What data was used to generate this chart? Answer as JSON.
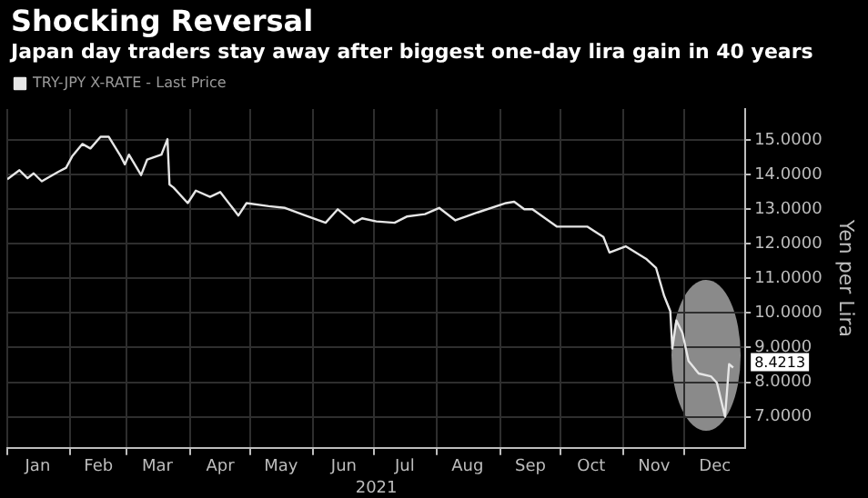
{
  "chart_data": {
    "type": "line",
    "title": "Shocking Reversal",
    "subtitle": "Japan day traders stay away after biggest one-day lira gain in 40 years",
    "xlabel": "2021",
    "ylabel": "Yen per Lira",
    "x": [
      "2021-01-01",
      "2021-01-07",
      "2021-01-11",
      "2021-01-14",
      "2021-01-18",
      "2021-01-26",
      "2021-01-30",
      "2021-02-02",
      "2021-02-07",
      "2021-02-11",
      "2021-02-16",
      "2021-02-20",
      "2021-02-26",
      "2021-02-28",
      "2021-03-02",
      "2021-03-08",
      "2021-03-11",
      "2021-03-18",
      "2021-03-21",
      "2021-03-22",
      "2021-03-24",
      "2021-03-31",
      "2021-04-04",
      "2021-04-11",
      "2021-04-16",
      "2021-04-25",
      "2021-04-29",
      "2021-05-10",
      "2021-05-18",
      "2021-05-28",
      "2021-06-07",
      "2021-06-13",
      "2021-06-21",
      "2021-06-25",
      "2021-07-02",
      "2021-07-11",
      "2021-07-17",
      "2021-07-26",
      "2021-08-02",
      "2021-08-10",
      "2021-08-21",
      "2021-09-04",
      "2021-09-08",
      "2021-09-13",
      "2021-09-17",
      "2021-09-29",
      "2021-10-14",
      "2021-10-22",
      "2021-10-25",
      "2021-11-02",
      "2021-11-12",
      "2021-11-17",
      "2021-11-21",
      "2021-11-24",
      "2021-11-25",
      "2021-11-27",
      "2021-11-30",
      "2021-12-03",
      "2021-12-08",
      "2021-12-14",
      "2021-12-17",
      "2021-12-21",
      "2021-12-23",
      "2021-12-25"
    ],
    "series": [
      {
        "name": "TRY-JPY X-RATE - Last Price",
        "color": "#e6e6e6",
        "values": [
          13.87,
          14.13,
          13.9,
          14.04,
          13.81,
          14.08,
          14.2,
          14.53,
          14.89,
          14.76,
          15.1,
          15.1,
          14.53,
          14.3,
          14.58,
          13.99,
          14.44,
          14.58,
          15.03,
          13.72,
          13.63,
          13.18,
          13.54,
          13.36,
          13.5,
          12.82,
          13.18,
          13.09,
          13.04,
          12.82,
          12.61,
          13.0,
          12.61,
          12.74,
          12.65,
          12.61,
          12.79,
          12.86,
          13.04,
          12.68,
          12.91,
          13.18,
          13.22,
          13.0,
          13.0,
          12.5,
          12.5,
          12.2,
          11.75,
          11.93,
          11.57,
          11.3,
          10.49,
          10.05,
          8.97,
          9.78,
          9.42,
          8.61,
          8.25,
          8.17,
          7.98,
          7.0,
          8.52,
          8.4213
        ],
        "value_labels": [
          null,
          null,
          null,
          null,
          null,
          null,
          null,
          null,
          null,
          null,
          null,
          null,
          null,
          null,
          null,
          null,
          null,
          null,
          null,
          null,
          null,
          null,
          null,
          null,
          null,
          null,
          null,
          null,
          null,
          null,
          null,
          null,
          null,
          null,
          null,
          null,
          null,
          null,
          null,
          null,
          null,
          null,
          null,
          null,
          null,
          null,
          null,
          null,
          null,
          null,
          null,
          null,
          null,
          null,
          null,
          null,
          null,
          null,
          null,
          null,
          null,
          null,
          null,
          "8.4213"
        ]
      }
    ],
    "xlim": [
      "2021-01-01",
      "2021-12-31"
    ],
    "xticks": [
      {
        "value": "2021-01-01",
        "label": null
      },
      {
        "value": "2021-01-16",
        "label": "Jan"
      },
      {
        "value": "2021-02-01",
        "label": null
      },
      {
        "value": "2021-02-15",
        "label": "Feb"
      },
      {
        "value": "2021-03-01",
        "label": null
      },
      {
        "value": "2021-03-16",
        "label": "Mar"
      },
      {
        "value": "2021-04-01",
        "label": null
      },
      {
        "value": "2021-04-16",
        "label": "Apr"
      },
      {
        "value": "2021-05-01",
        "label": null
      },
      {
        "value": "2021-05-16",
        "label": "May"
      },
      {
        "value": "2021-06-01",
        "label": null
      },
      {
        "value": "2021-06-16",
        "label": "Jun"
      },
      {
        "value": "2021-07-01",
        "label": null
      },
      {
        "value": "2021-07-16",
        "label": "Jul"
      },
      {
        "value": "2021-08-01",
        "label": null
      },
      {
        "value": "2021-08-16",
        "label": "Aug"
      },
      {
        "value": "2021-09-01",
        "label": null
      },
      {
        "value": "2021-09-16",
        "label": "Sep"
      },
      {
        "value": "2021-10-01",
        "label": null
      },
      {
        "value": "2021-10-16",
        "label": "Oct"
      },
      {
        "value": "2021-11-01",
        "label": null
      },
      {
        "value": "2021-11-16",
        "label": "Nov"
      },
      {
        "value": "2021-12-01",
        "label": null
      },
      {
        "value": "2021-12-16",
        "label": "Dec"
      }
    ],
    "ylim": [
      6.1,
      15.9
    ],
    "yticks": [
      {
        "value": 7,
        "label": "7.0000"
      },
      {
        "value": 8,
        "label": "8.0000"
      },
      {
        "value": 9,
        "label": "9.0000"
      },
      {
        "value": 10,
        "label": "10.0000"
      },
      {
        "value": 11,
        "label": "11.0000"
      },
      {
        "value": 12,
        "label": "12.0000"
      },
      {
        "value": 13,
        "label": "13.0000"
      },
      {
        "value": 14,
        "label": "14.0000"
      },
      {
        "value": 15,
        "label": "15.0000"
      }
    ],
    "grid": true,
    "legend": "top left",
    "marker": "none"
  }
}
